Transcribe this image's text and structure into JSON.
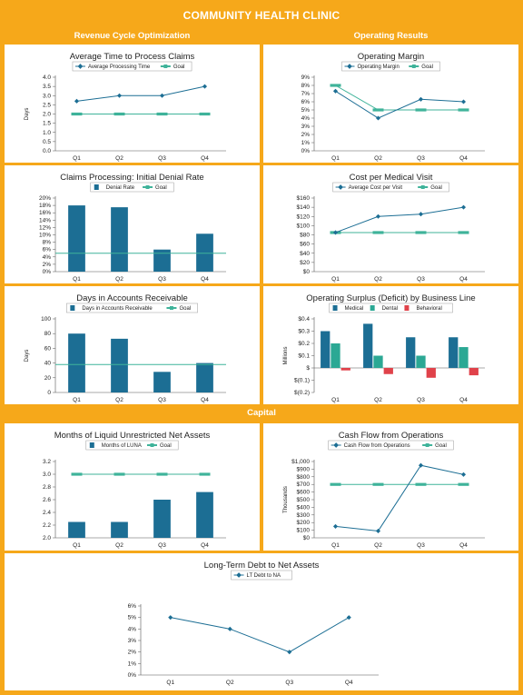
{
  "header": {
    "title": "COMMUNITY HEALTH CLINIC"
  },
  "sections": {
    "revenue": "Revenue Cycle Optimization",
    "operating": "Operating Results",
    "capital": "Capital"
  },
  "colors": {
    "orange": "#f6a81a",
    "series_blue": "#1c6e94",
    "goal_teal": "#3fb39a",
    "medical": "#1c6e94",
    "dental": "#2ba894",
    "behavioral": "#e0424a"
  },
  "chart_data": [
    {
      "id": "avg-time-claims",
      "type": "line",
      "title": "Average Time to Process Claims",
      "categories": [
        "Q1",
        "Q2",
        "Q3",
        "Q4"
      ],
      "ylabel": "Days",
      "ylim": [
        0,
        4
      ],
      "yticks": [
        "0.0",
        "0.5",
        "1.0",
        "1.5",
        "2.0",
        "2.5",
        "3.0",
        "3.5",
        "4.0"
      ],
      "yticks_values": [
        0,
        0.5,
        1,
        1.5,
        2,
        2.5,
        3,
        3.5,
        4
      ],
      "series": [
        {
          "name": "Average Processing Time",
          "style": "line",
          "values": [
            2.7,
            3.0,
            3.0,
            3.5
          ]
        },
        {
          "name": "Goal",
          "style": "goal",
          "values": [
            2.0,
            2.0,
            2.0,
            2.0
          ]
        }
      ],
      "legend": "top"
    },
    {
      "id": "operating-margin",
      "type": "line",
      "title": "Operating Margin",
      "categories": [
        "Q1",
        "Q2",
        "Q3",
        "Q4"
      ],
      "ylim": [
        0,
        9
      ],
      "yticks": [
        "0%",
        "1%",
        "2%",
        "3%",
        "4%",
        "5%",
        "6%",
        "7%",
        "8%",
        "9%"
      ],
      "yticks_values": [
        0,
        1,
        2,
        3,
        4,
        5,
        6,
        7,
        8,
        9
      ],
      "series": [
        {
          "name": "Operating Margin",
          "style": "line",
          "values": [
            7.3,
            4.0,
            6.3,
            6.0
          ]
        },
        {
          "name": "Goal",
          "style": "goal",
          "values": [
            8.0,
            5.0,
            5.0,
            5.0
          ]
        }
      ],
      "legend": "top"
    },
    {
      "id": "denial-rate",
      "type": "bar",
      "title": "Claims Processing: Initial Denial Rate",
      "categories": [
        "Q1",
        "Q2",
        "Q3",
        "Q4"
      ],
      "ylim": [
        0,
        20
      ],
      "yticks": [
        "0%",
        "2%",
        "4%",
        "6%",
        "8%",
        "10%",
        "12%",
        "14%",
        "16%",
        "18%",
        "20%"
      ],
      "yticks_values": [
        0,
        2,
        4,
        6,
        8,
        10,
        12,
        14,
        16,
        18,
        20
      ],
      "series": [
        {
          "name": "Denial Rate",
          "style": "bar",
          "values": [
            18.0,
            17.5,
            6.0,
            10.3
          ]
        },
        {
          "name": "Goal",
          "style": "goalline",
          "values": [
            5.0,
            5.0,
            5.0,
            5.0
          ]
        }
      ],
      "legend": "top"
    },
    {
      "id": "cost-per-visit",
      "type": "line",
      "title": "Cost per Medical Visit",
      "categories": [
        "Q1",
        "Q2",
        "Q3",
        "Q4"
      ],
      "ylim": [
        0,
        160
      ],
      "yticks": [
        "$0",
        "$20",
        "$40",
        "$60",
        "$80",
        "$100",
        "$120",
        "$140",
        "$160"
      ],
      "yticks_values": [
        0,
        20,
        40,
        60,
        80,
        100,
        120,
        140,
        160
      ],
      "series": [
        {
          "name": "Average Cost per Visit",
          "style": "line",
          "values": [
            85,
            120,
            125,
            140
          ]
        },
        {
          "name": "Goal",
          "style": "goal",
          "values": [
            85,
            85,
            85,
            85
          ]
        }
      ],
      "legend": "top"
    },
    {
      "id": "days-ar",
      "type": "bar",
      "title": "Days in Accounts Receivable",
      "categories": [
        "Q1",
        "Q2",
        "Q3",
        "Q4"
      ],
      "ylabel": "Days",
      "ylim": [
        0,
        100
      ],
      "yticks": [
        "0",
        "20",
        "40",
        "60",
        "80",
        "100"
      ],
      "yticks_values": [
        0,
        20,
        40,
        60,
        80,
        100
      ],
      "series": [
        {
          "name": "Days in Accounts Receivable",
          "style": "bar",
          "values": [
            80,
            73,
            28,
            40
          ]
        },
        {
          "name": "Goal",
          "style": "goalline",
          "values": [
            38,
            38,
            38,
            38
          ]
        }
      ],
      "legend": "top"
    },
    {
      "id": "operating-surplus",
      "type": "bar",
      "title": "Operating Surplus (Deficit) by Business Line",
      "categories": [
        "Q1",
        "Q2",
        "Q3",
        "Q4"
      ],
      "ylabel": "Millions",
      "ylim": [
        -0.2,
        0.4
      ],
      "yticks": [
        "$(0.2)",
        "$(0.1)",
        "$",
        "$0.1",
        "$0.2",
        "$0.3",
        "$0.4"
      ],
      "yticks_values": [
        -0.2,
        -0.1,
        0,
        0.1,
        0.2,
        0.3,
        0.4
      ],
      "series": [
        {
          "name": "Medical",
          "style": "bar",
          "color": "#1c6e94",
          "values": [
            0.3,
            0.36,
            0.25,
            0.25
          ]
        },
        {
          "name": "Dental",
          "style": "bar",
          "color": "#2ba894",
          "values": [
            0.2,
            0.1,
            0.1,
            0.17
          ]
        },
        {
          "name": "Behavioral",
          "style": "bar",
          "color": "#e0424a",
          "values": [
            -0.02,
            -0.05,
            -0.08,
            -0.06
          ]
        }
      ],
      "legend": "top"
    },
    {
      "id": "luna",
      "type": "bar",
      "title": "Months of Liquid Unrestricted Net Assets",
      "categories": [
        "Q1",
        "Q2",
        "Q3",
        "Q4"
      ],
      "ylim": [
        2.0,
        3.2
      ],
      "yticks": [
        "2.0",
        "2.2",
        "2.4",
        "2.6",
        "2.8",
        "3.0",
        "3.2"
      ],
      "yticks_values": [
        2.0,
        2.2,
        2.4,
        2.6,
        2.8,
        3.0,
        3.2
      ],
      "series": [
        {
          "name": "Months of LUNA",
          "style": "bar",
          "values": [
            2.25,
            2.25,
            2.6,
            2.72
          ]
        },
        {
          "name": "Goal",
          "style": "goal",
          "values": [
            3.0,
            3.0,
            3.0,
            3.0
          ]
        }
      ],
      "legend": "top"
    },
    {
      "id": "cash-flow",
      "type": "line",
      "title": "Cash Flow from Operations",
      "categories": [
        "Q1",
        "Q2",
        "Q3",
        "Q4"
      ],
      "ylabel": "Thousands",
      "ylim": [
        0,
        1000
      ],
      "yticks": [
        "$0",
        "$100",
        "$200",
        "$300",
        "$400",
        "$500",
        "$600",
        "$700",
        "$800",
        "$900",
        "$1,000"
      ],
      "yticks_values": [
        0,
        100,
        200,
        300,
        400,
        500,
        600,
        700,
        800,
        900,
        1000
      ],
      "series": [
        {
          "name": "Cash Flow from Operations",
          "style": "line",
          "values": [
            150,
            90,
            950,
            830
          ]
        },
        {
          "name": "Goal",
          "style": "goal",
          "values": [
            700,
            700,
            700,
            700
          ]
        }
      ],
      "legend": "top"
    },
    {
      "id": "lt-debt",
      "type": "line",
      "title": "Long-Term Debt to Net Assets",
      "categories": [
        "Q1",
        "Q2",
        "Q3",
        "Q4"
      ],
      "ylim": [
        0,
        6
      ],
      "yticks": [
        "0%",
        "1%",
        "2%",
        "3%",
        "4%",
        "5%",
        "6%"
      ],
      "yticks_values": [
        0,
        1,
        2,
        3,
        4,
        5,
        6
      ],
      "series": [
        {
          "name": "LT Debt to NA",
          "style": "line",
          "values": [
            5.0,
            4.0,
            2.0,
            5.0
          ]
        }
      ],
      "legend": "top"
    }
  ]
}
